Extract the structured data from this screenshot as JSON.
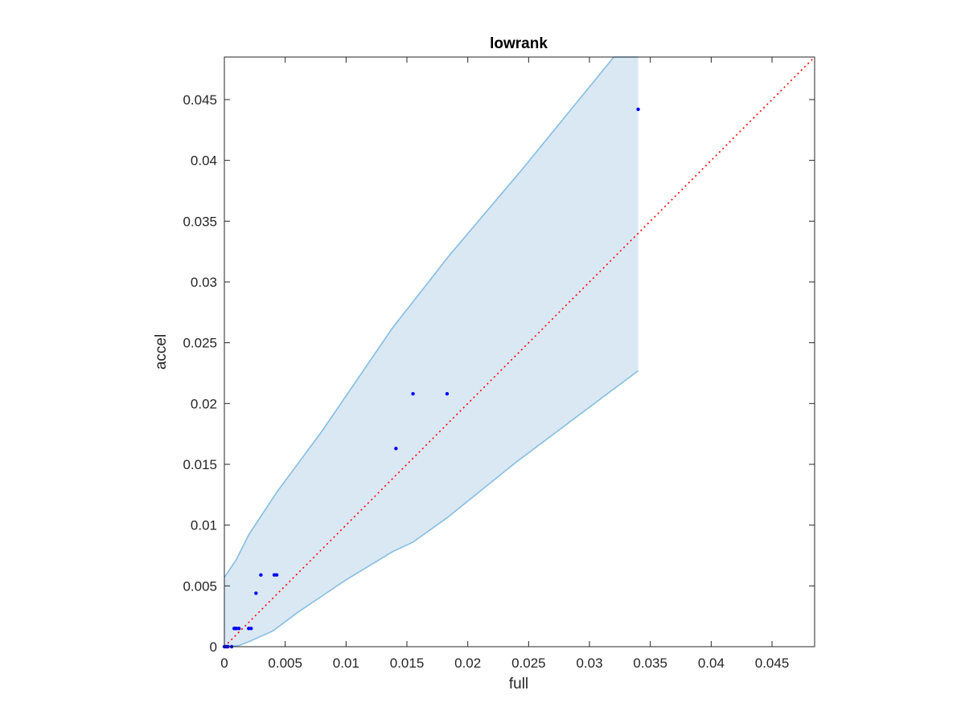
{
  "chart_data": {
    "type": "scatter",
    "title": "lowrank",
    "xlabel": "full",
    "ylabel": "accel",
    "xlim": [
      0,
      0.0485
    ],
    "ylim": [
      0,
      0.0485
    ],
    "xticks": [
      0,
      0.005,
      0.01,
      0.015,
      0.02,
      0.025,
      0.03,
      0.035,
      0.04,
      0.045
    ],
    "xtick_labels": [
      "0",
      "0.005",
      "0.01",
      "0.015",
      "0.02",
      "0.025",
      "0.03",
      "0.035",
      "0.04",
      "0.045"
    ],
    "yticks": [
      0,
      0.005,
      0.01,
      0.015,
      0.02,
      0.025,
      0.03,
      0.035,
      0.04,
      0.045
    ],
    "ytick_labels": [
      "0",
      "0.005",
      "0.01",
      "0.015",
      "0.02",
      "0.025",
      "0.03",
      "0.035",
      "0.04",
      "0.045"
    ],
    "grid": false,
    "points": [
      {
        "x": 0.0,
        "y": 0.0
      },
      {
        "x": 0.0001,
        "y": 0.0
      },
      {
        "x": 0.0002,
        "y": 0.0
      },
      {
        "x": 0.0003,
        "y": 0.0
      },
      {
        "x": 0.0006,
        "y": 0.0
      },
      {
        "x": 0.0008,
        "y": 0.0015
      },
      {
        "x": 0.0009,
        "y": 0.0015
      },
      {
        "x": 0.001,
        "y": 0.0015
      },
      {
        "x": 0.0012,
        "y": 0.0015
      },
      {
        "x": 0.002,
        "y": 0.0015
      },
      {
        "x": 0.0022,
        "y": 0.0015
      },
      {
        "x": 0.0026,
        "y": 0.0044
      },
      {
        "x": 0.003,
        "y": 0.0059
      },
      {
        "x": 0.0041,
        "y": 0.0059
      },
      {
        "x": 0.0043,
        "y": 0.0059
      },
      {
        "x": 0.0141,
        "y": 0.0163
      },
      {
        "x": 0.0155,
        "y": 0.0208
      },
      {
        "x": 0.0183,
        "y": 0.0208
      },
      {
        "x": 0.034,
        "y": 0.0442
      }
    ],
    "reference_line": {
      "x": [
        0,
        0.0485
      ],
      "y": [
        0,
        0.0485
      ],
      "style": "dotted",
      "color": "#ff0000"
    },
    "band": {
      "upper": [
        {
          "x": 0.0,
          "y": 0.0057
        },
        {
          "x": 0.001,
          "y": 0.0072
        },
        {
          "x": 0.002,
          "y": 0.0092
        },
        {
          "x": 0.0043,
          "y": 0.0127
        },
        {
          "x": 0.008,
          "y": 0.0177
        },
        {
          "x": 0.0138,
          "y": 0.0262
        },
        {
          "x": 0.0185,
          "y": 0.0322
        },
        {
          "x": 0.0245,
          "y": 0.0393
        },
        {
          "x": 0.032,
          "y": 0.0485
        },
        {
          "x": 0.034,
          "y": 0.0485
        }
      ],
      "lower": [
        {
          "x": 0.0,
          "y": 0.0
        },
        {
          "x": 0.0012,
          "y": 0.0001
        },
        {
          "x": 0.002,
          "y": 0.0004
        },
        {
          "x": 0.004,
          "y": 0.0013
        },
        {
          "x": 0.006,
          "y": 0.0028
        },
        {
          "x": 0.01,
          "y": 0.0055
        },
        {
          "x": 0.0138,
          "y": 0.0078
        },
        {
          "x": 0.0138,
          "y": 0.0078
        },
        {
          "x": 0.0155,
          "y": 0.0086
        },
        {
          "x": 0.0183,
          "y": 0.0106
        },
        {
          "x": 0.024,
          "y": 0.0152
        },
        {
          "x": 0.034,
          "y": 0.0227
        }
      ]
    },
    "colors": {
      "points": "#0000ff",
      "band_fill": "#dae8f4",
      "band_edge": "#86bde2",
      "reference_line": "#ff0000",
      "axes": "#262626"
    }
  }
}
